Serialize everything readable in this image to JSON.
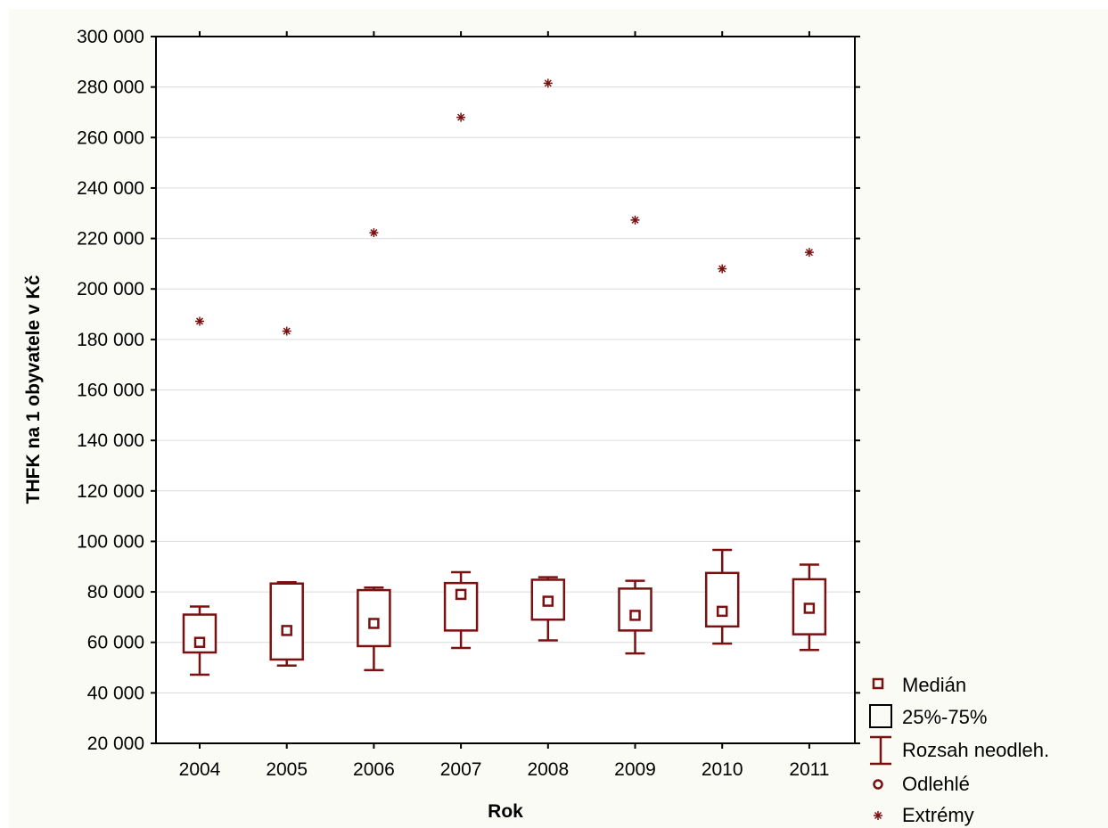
{
  "chart_data": {
    "type": "boxplot",
    "xlabel": "Rok",
    "ylabel": "THFK na 1 obyvatele v Kč",
    "ylim": [
      20000,
      300000
    ],
    "yticks": [
      20000,
      40000,
      60000,
      80000,
      100000,
      120000,
      140000,
      160000,
      180000,
      200000,
      220000,
      240000,
      260000,
      280000,
      300000
    ],
    "ytick_labels": [
      "20 000",
      "40 000",
      "60 000",
      "80 000",
      "100 000",
      "120 000",
      "140 000",
      "160 000",
      "180 000",
      "200 000",
      "220 000",
      "240 000",
      "260 000",
      "280 000",
      "300 000"
    ],
    "grid": true,
    "legend_position": "bottom-right",
    "colors": {
      "marks": "#7b1010",
      "grid": "#dcdcdc",
      "frame": "#000000",
      "outer_background": "#fbfbf6"
    },
    "categories": [
      "2004",
      "2005",
      "2006",
      "2007",
      "2008",
      "2009",
      "2010",
      "2011"
    ],
    "median": [
      60000,
      64700,
      67500,
      79000,
      76300,
      70700,
      72300,
      73500
    ],
    "q1": [
      56000,
      53200,
      58500,
      64700,
      69000,
      64700,
      66300,
      63200
    ],
    "q3": [
      71000,
      83300,
      80700,
      83500,
      84800,
      81300,
      87500,
      85000
    ],
    "whisker_low": [
      47200,
      50800,
      49000,
      57800,
      60800,
      55600,
      59500,
      57000
    ],
    "whisker_high": [
      74200,
      83800,
      81700,
      87800,
      85800,
      84400,
      96600,
      90800
    ],
    "extremes": [
      187200,
      183300,
      222300,
      268000,
      281500,
      227300,
      208000,
      214500
    ],
    "legend": {
      "median": "Medián",
      "box": "25%-75%",
      "whisker": "Rozsah neodleh.",
      "outlier": "Odlehlé",
      "extreme": "Extrémy"
    }
  }
}
